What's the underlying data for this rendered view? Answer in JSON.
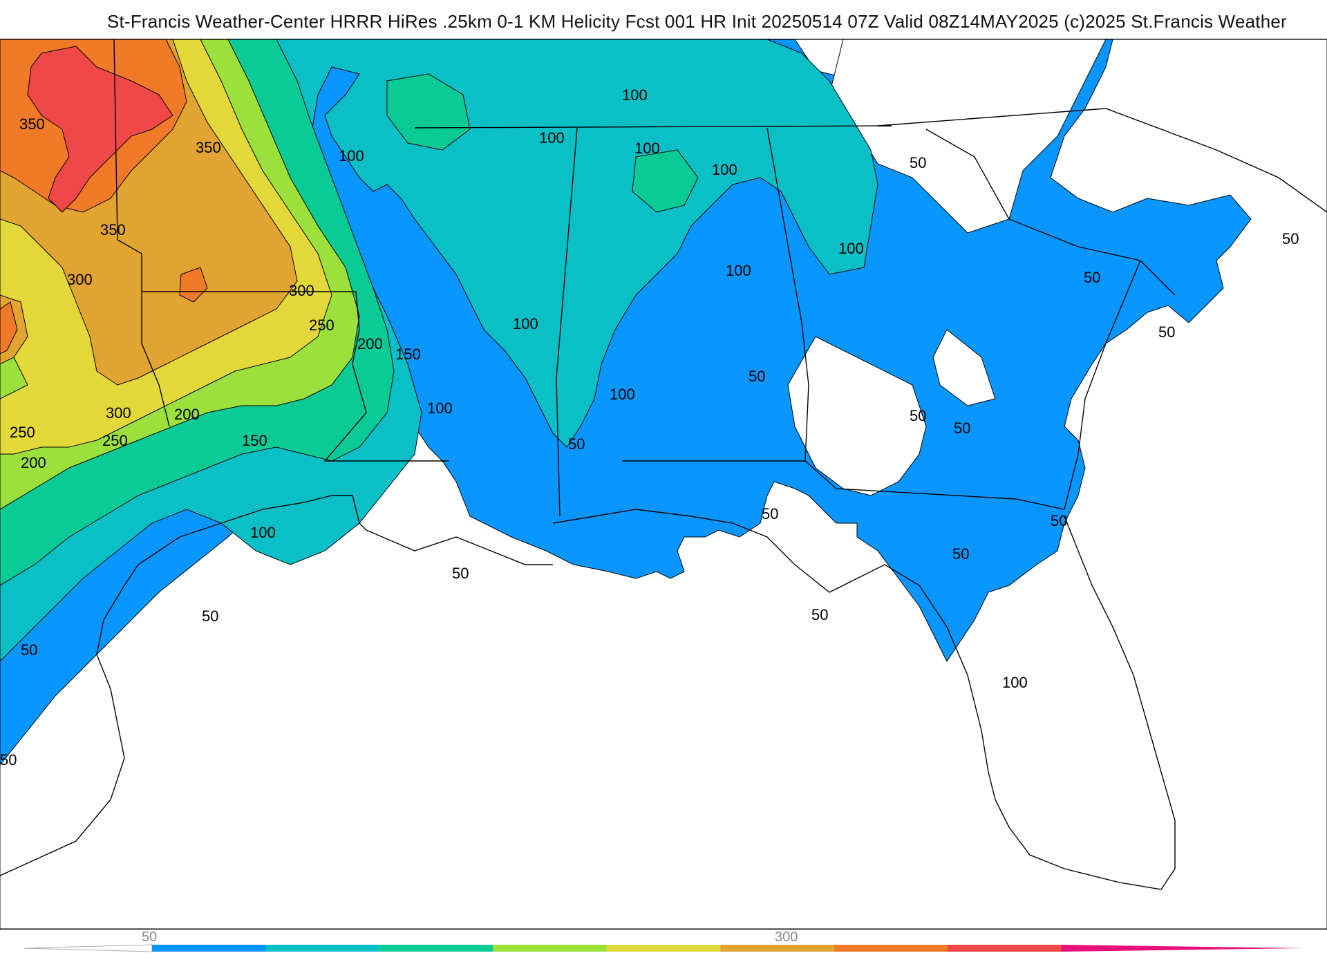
{
  "title": "St-Francis Weather-Center HRRR HiRes .25km 0-1 KM Helicity Fcst 001 HR Init 20250514 07Z  Valid 08Z14MAY2025    (c)2025 St.Francis Weather",
  "map": {
    "region": "Southeastern United States and Gulf of Mexico",
    "field": "0-1 KM Helicity",
    "contour_labels": [
      "350",
      "350",
      "350",
      "300",
      "300",
      "250",
      "200",
      "150",
      "250",
      "300",
      "200",
      "250",
      "200",
      "150",
      "100",
      "100",
      "100",
      "100",
      "100",
      "100",
      "100",
      "100",
      "100",
      "100",
      "100",
      "50",
      "50",
      "50",
      "50",
      "50",
      "50",
      "50",
      "50",
      "50",
      "50",
      "50",
      "50",
      "50",
      "50",
      "100",
      "50",
      "50"
    ],
    "colors": {
      "lt50": "#ffffff",
      "c50": "#0a96ff",
      "c100": "#0abfc6",
      "c150": "#0acb96",
      "c200": "#9be03b",
      "c250": "#e3d83a",
      "c300": "#e2a430",
      "c350": "#f07a28",
      "c400": "#f04848"
    }
  },
  "legend": {
    "tick_labels": [
      "50",
      "300"
    ],
    "colors": [
      "#0a96ff",
      "#0abfc6",
      "#0acb96",
      "#9be03b",
      "#e3d83a",
      "#e2a430",
      "#f07a28",
      "#f04848",
      "#e8107a"
    ]
  }
}
